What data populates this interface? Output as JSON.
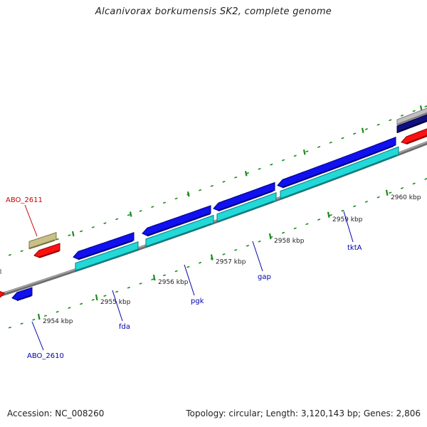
{
  "title": "Alcanivorax borkumensis SK2, complete genome",
  "footer": {
    "accession": "Accession: NC_008260",
    "stats": "Topology: circular; Length: 3,120,143 bp; Genes: 2,806"
  },
  "colors": {
    "backbone": "#808080",
    "forward_cds": "#0000ee",
    "reverse_cds": "#ee0000",
    "rna_like": "#00cccc",
    "olive_feature": "#b8b070",
    "tick": "#1a8a1a",
    "gene_label_blue": "#0000aa",
    "gene_label_red": "#cc0000"
  },
  "ticks": [
    {
      "label": "2954 kbp"
    },
    {
      "label": "2955 kbp"
    },
    {
      "label": "2956 kbp"
    },
    {
      "label": "2957 kbp"
    },
    {
      "label": "2958 kbp"
    },
    {
      "label": "2959 kbp"
    },
    {
      "label": "2960 kbp"
    }
  ],
  "genes": [
    {
      "name": "ABO_2611",
      "color": "red"
    },
    {
      "name": "ABO_2610",
      "color": "blue"
    },
    {
      "name": "fda",
      "color": "blue"
    },
    {
      "name": "pgk",
      "color": "blue"
    },
    {
      "name": "gap",
      "color": "blue"
    },
    {
      "name": "tktA",
      "color": "blue"
    }
  ]
}
